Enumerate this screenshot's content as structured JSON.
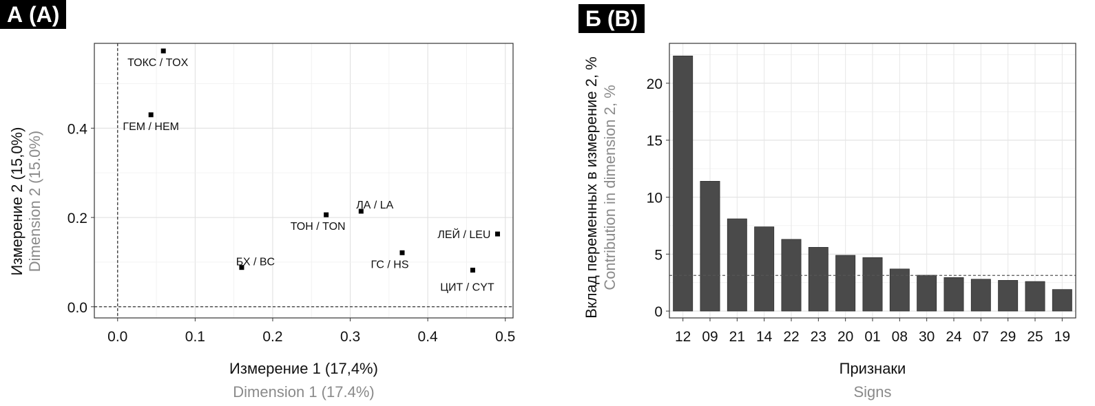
{
  "chart_data": [
    {
      "panel_label": "А (A)",
      "type": "scatter",
      "xlabel": "Измерение 1 (17,4%)",
      "xlabel_en": "Dimension 1 (17.4%)",
      "ylabel": "Измерение 2 (15,0%)",
      "ylabel_en": "Dimension 2 (15.0%)",
      "xlim": [
        -0.03,
        0.51
      ],
      "ylim": [
        -0.025,
        0.59
      ],
      "x_ticks": [
        0.0,
        0.1,
        0.2,
        0.3,
        0.4,
        0.5
      ],
      "x_tick_labels": [
        "0.0",
        "0.1",
        "0.2",
        "0.3",
        "0.4",
        "0.5"
      ],
      "y_ticks": [
        0.0,
        0.2,
        0.4
      ],
      "y_tick_labels": [
        "0.0",
        "0.2",
        "0.4"
      ],
      "grid": true,
      "reference_lines": {
        "x": 0,
        "y": 0
      },
      "points": [
        {
          "label": "ТОКС / TOX",
          "x": 0.059,
          "y": 0.573
        },
        {
          "label": "ГЕМ / HEM",
          "x": 0.043,
          "y": 0.43
        },
        {
          "label": "ЛА / LA",
          "x": 0.314,
          "y": 0.214
        },
        {
          "label": "ТОН / TON",
          "x": 0.269,
          "y": 0.206
        },
        {
          "label": "ЛЕЙ / LEU",
          "x": 0.49,
          "y": 0.163
        },
        {
          "label": "ГС / HS",
          "x": 0.367,
          "y": 0.121
        },
        {
          "label": "БХ / BC",
          "x": 0.16,
          "y": 0.088
        },
        {
          "label": "ЦИТ / CYT",
          "x": 0.458,
          "y": 0.082
        }
      ]
    },
    {
      "panel_label": "Б (B)",
      "type": "bar",
      "xlabel": "Признаки",
      "xlabel_en": "Signs",
      "ylabel": "Вклад переменных в измерение 2, %",
      "ylabel_en": "Contribution in dimension 2, %",
      "ylim": [
        -0.6,
        23.5
      ],
      "y_ticks": [
        0,
        5,
        10,
        15,
        20
      ],
      "y_tick_labels": [
        "0",
        "5",
        "10",
        "15",
        "20"
      ],
      "grid": true,
      "reference_line_y": 3.13,
      "categories": [
        "12",
        "09",
        "21",
        "14",
        "22",
        "23",
        "20",
        "01",
        "08",
        "30",
        "24",
        "07",
        "29",
        "25",
        "19"
      ],
      "values": [
        22.4,
        11.4,
        8.1,
        7.4,
        6.3,
        5.6,
        4.9,
        4.7,
        3.7,
        3.15,
        2.95,
        2.8,
        2.7,
        2.6,
        1.9
      ],
      "bar_color": "#4a4a4a"
    }
  ]
}
